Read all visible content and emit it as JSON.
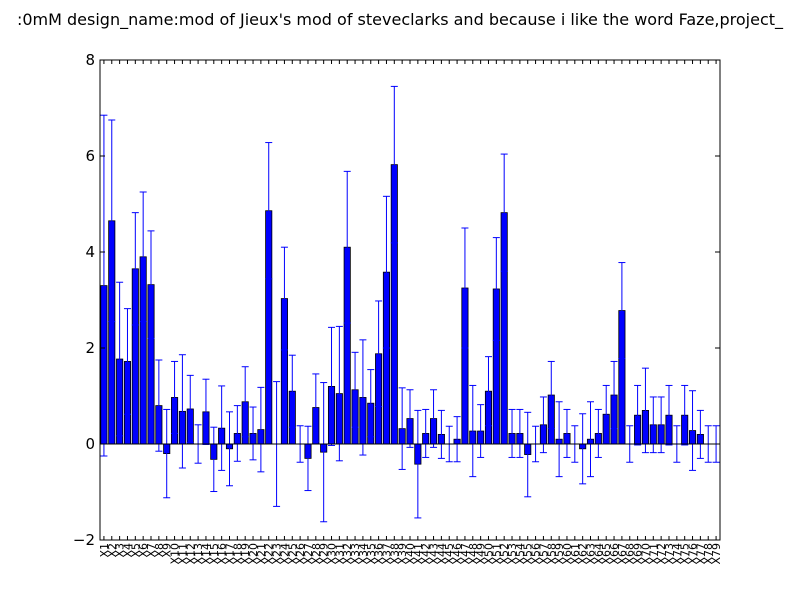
{
  "chart_data": {
    "type": "bar",
    "title": ":0mM  design_name:mod of Jieux's mod of steveclarks and because i like the word Faze,project_",
    "xlabel": "",
    "ylabel": "",
    "ylim": [
      -2,
      8
    ],
    "yticks": [
      "-2",
      "0",
      "2",
      "4",
      "6",
      "8"
    ],
    "grid": false,
    "bar_color": "#0000ff",
    "error_color": "#0000ff",
    "categories": [
      "X1",
      "X2",
      "X3",
      "X4",
      "X5",
      "X6",
      "X7",
      "X8",
      "X9",
      "X10",
      "X11",
      "X12",
      "X13",
      "X14",
      "X15",
      "X16",
      "X17",
      "X18",
      "X19",
      "X20",
      "X21",
      "X22",
      "X23",
      "X24",
      "X25",
      "X26",
      "X27",
      "X28",
      "X29",
      "X30",
      "X31",
      "X32",
      "X33",
      "X34",
      "X35",
      "X36",
      "X37",
      "X38",
      "X39",
      "X40",
      "X41",
      "X42",
      "X43",
      "X44",
      "X45",
      "X46",
      "X47",
      "X48",
      "X49",
      "X50",
      "X51",
      "X52",
      "X53",
      "X54",
      "X55",
      "X56",
      "X57",
      "X58",
      "X59",
      "X60",
      "X61",
      "X62",
      "X63",
      "X64",
      "X65",
      "X66",
      "X67",
      "X68",
      "X69",
      "X70",
      "X71",
      "X72",
      "X73",
      "X74",
      "X75",
      "X76",
      "X77",
      "X78",
      "X79"
    ],
    "values": [
      3.3,
      4.65,
      1.77,
      1.72,
      3.65,
      3.9,
      3.32,
      0.8,
      -0.2,
      0.97,
      0.68,
      0.73,
      0.0,
      0.67,
      -0.32,
      0.33,
      -0.1,
      0.22,
      0.88,
      0.22,
      0.3,
      4.86,
      0.0,
      3.03,
      1.1,
      0.0,
      -0.3,
      0.76,
      -0.17,
      1.2,
      1.05,
      4.1,
      1.13,
      0.97,
      0.85,
      1.88,
      3.58,
      5.82,
      0.32,
      0.53,
      -0.42,
      0.22,
      0.53,
      0.2,
      0.0,
      0.1,
      3.25,
      0.27,
      0.27,
      1.1,
      3.23,
      4.82,
      0.22,
      0.22,
      -0.22,
      0.0,
      0.4,
      1.02,
      0.1,
      0.22,
      0.0,
      -0.1,
      0.1,
      0.22,
      0.62,
      1.02,
      2.78,
      0.0,
      0.6,
      0.7,
      0.4,
      0.4,
      0.6,
      0.0,
      0.6,
      0.28,
      0.2,
      0.0,
      0.0
    ],
    "errors": [
      3.55,
      2.1,
      1.6,
      1.1,
      1.17,
      1.35,
      1.12,
      0.95,
      0.92,
      0.75,
      1.18,
      0.7,
      0.4,
      0.68,
      0.67,
      0.88,
      0.77,
      0.58,
      0.73,
      0.55,
      0.88,
      1.42,
      1.3,
      1.07,
      0.75,
      0.38,
      0.67,
      0.7,
      1.45,
      1.23,
      1.4,
      1.58,
      0.78,
      1.2,
      0.7,
      1.1,
      1.58,
      1.63,
      0.85,
      0.6,
      1.12,
      0.5,
      0.6,
      0.5,
      0.37,
      0.47,
      1.25,
      0.95,
      0.55,
      0.72,
      1.07,
      1.22,
      0.5,
      0.5,
      0.88,
      0.37,
      0.58,
      0.7,
      0.78,
      0.5,
      0.38,
      0.73,
      0.78,
      0.5,
      0.6,
      0.7,
      1.0,
      0.38,
      0.62,
      0.88,
      0.58,
      0.58,
      0.62,
      0.38,
      0.62,
      0.83,
      0.5,
      0.38,
      0.38
    ]
  }
}
